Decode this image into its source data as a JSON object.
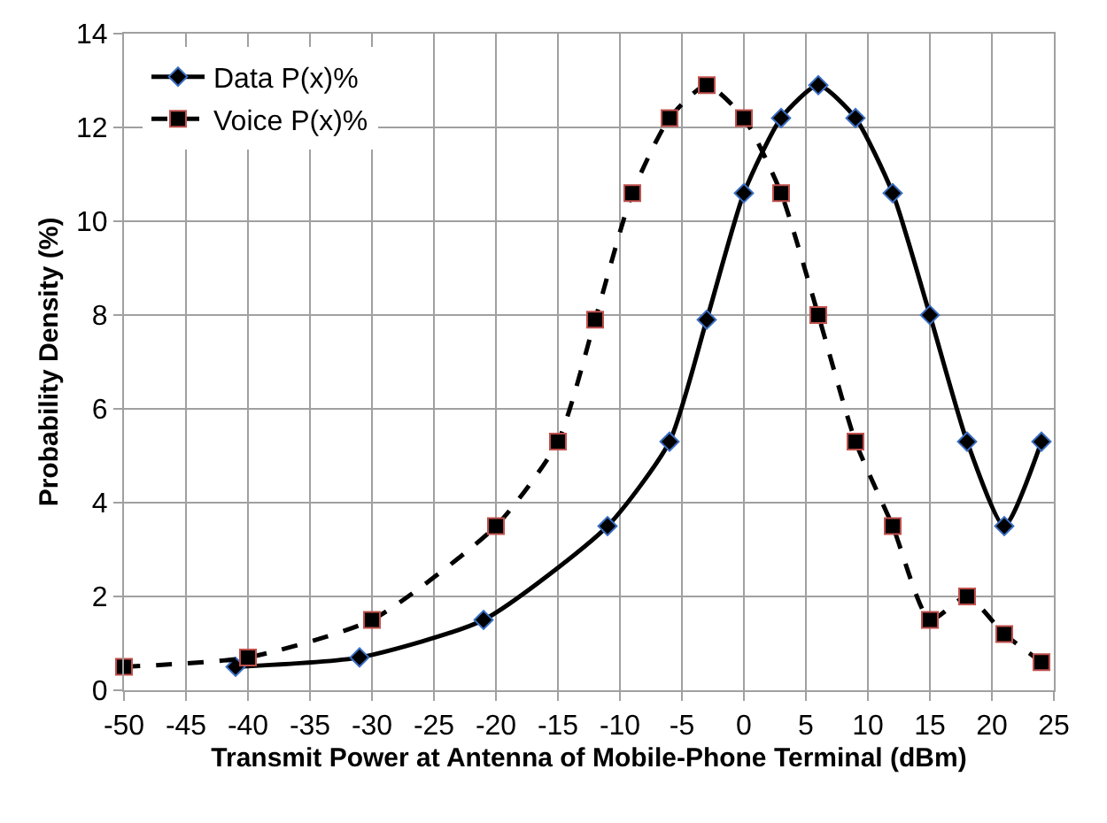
{
  "chart_data": {
    "type": "line",
    "xlabel": "Transmit Power at Antenna of Mobile-Phone Terminal (dBm)",
    "ylabel": "Probability Density (%)",
    "series": [
      {
        "name": "Data P(x)%",
        "color": "#000000",
        "marker": "diamond",
        "line_style": "solid",
        "x": [
          -41,
          -31,
          -21,
          -11,
          -6,
          -3,
          0,
          3,
          6,
          9,
          12,
          15,
          18,
          21,
          24
        ],
        "values": [
          0.5,
          0.7,
          1.5,
          3.5,
          5.3,
          7.9,
          10.6,
          12.2,
          12.9,
          12.2,
          10.6,
          8.0,
          5.3,
          3.5,
          5.3
        ]
      },
      {
        "name": "Voice P(x)%",
        "color": "#000000",
        "marker": "square",
        "line_style": "dashed",
        "x": [
          -50,
          -40,
          -30,
          -20,
          -15,
          -12,
          -9,
          -6,
          -3,
          0,
          3,
          6,
          9,
          12,
          15,
          18,
          21,
          24
        ],
        "values": [
          0.5,
          0.7,
          1.5,
          3.5,
          5.3,
          7.9,
          10.6,
          12.2,
          12.9,
          12.2,
          10.6,
          8.0,
          5.3,
          3.5,
          1.5,
          2.0,
          1.2,
          0.6
        ]
      }
    ],
    "xlim": [
      -50,
      25
    ],
    "xticks": [
      -50,
      -45,
      -40,
      -35,
      -30,
      -25,
      -20,
      -15,
      -10,
      -5,
      0,
      5,
      10,
      15,
      20,
      25
    ],
    "ylim": [
      0,
      14
    ],
    "yticks": [
      0,
      2,
      4,
      6,
      8,
      10,
      12,
      14
    ],
    "grid": true,
    "legend": "top left"
  }
}
